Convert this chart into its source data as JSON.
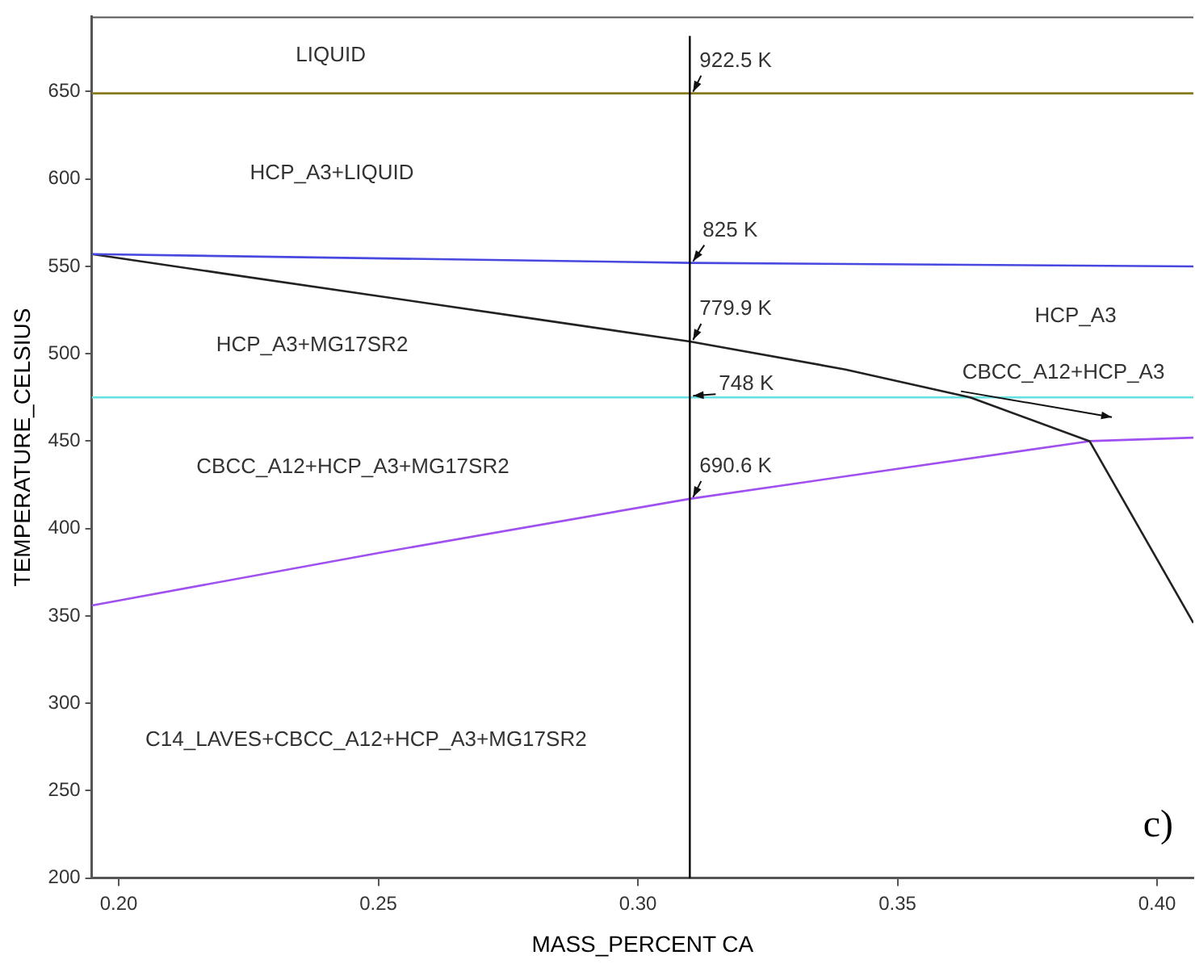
{
  "chart_data": {
    "type": "line",
    "xlabel": "MASS_PERCENT CA",
    "ylabel": "TEMPERATURE_CELSIUS",
    "xlim": [
      0.1948,
      0.407
    ],
    "ylim": [
      200,
      693
    ],
    "xticks": [
      {
        "value": 0.2,
        "label": "0.20"
      },
      0.25,
      {
        "value": 0.3,
        "label": "0.30"
      },
      0.35,
      {
        "value": 0.4,
        "label": "0.40"
      }
    ],
    "yticks": [
      200,
      250,
      300,
      350,
      400,
      450,
      500,
      550,
      600,
      650
    ],
    "grid": false,
    "legend": false,
    "marker": "none",
    "line_style": "solid",
    "series": [
      {
        "color": "#857a1e",
        "x": [
          0.1948,
          0.407
        ],
        "values": [
          649,
          649
        ]
      },
      {
        "color": "#4848e0",
        "x": [
          0.1948,
          0.31,
          0.407
        ],
        "values": [
          557,
          552,
          550
        ]
      },
      {
        "color": "#222222",
        "x": [
          0.1948,
          0.22,
          0.25,
          0.28,
          0.31,
          0.34,
          0.364,
          0.387,
          0.407
        ],
        "values": [
          557,
          546,
          533,
          520,
          507,
          491,
          475,
          450,
          346
        ]
      },
      {
        "color": "#66e0e0",
        "x": [
          0.1948,
          0.407
        ],
        "values": [
          475,
          475
        ]
      },
      {
        "color": "#a050f0",
        "x": [
          0.1948,
          0.25,
          0.31,
          0.387,
          0.407
        ],
        "values": [
          356,
          386,
          417,
          450,
          452
        ]
      }
    ],
    "ref_lines": [
      {
        "axis": "x",
        "value": 0.31,
        "color": "#000000"
      }
    ],
    "annotations": [
      {
        "text": "922.5 K",
        "y": 649
      },
      {
        "text": "825 K",
        "y": 552
      },
      {
        "text": "779.9 K",
        "y": 507
      },
      {
        "text": "748 K",
        "y": 475
      },
      {
        "text": "690.6 K",
        "y": 417
      },
      "CBCC_A12+HCP_A3",
      "LIQUID",
      "HCP_A3+LIQUID",
      "HCP_A3+MG17SR2",
      "CBCC_A12+HCP_A3+MG17SR2",
      "C14_LAVES+CBCC_A12+HCP_A3+MG17SR2",
      "HCP_A3",
      "c)"
    ]
  }
}
